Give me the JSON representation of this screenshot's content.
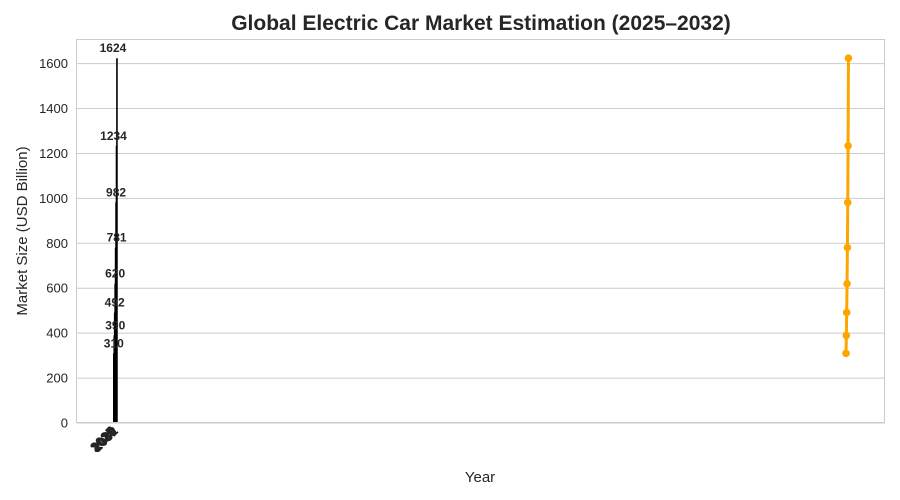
{
  "chart_data": {
    "type": "bar",
    "title": "Global Electric Car Market Estimation (2025–2032)",
    "xlabel": "Year",
    "ylabel": "Market Size (USD Billion)",
    "categories": [
      "2025",
      "2026",
      "2027",
      "2028",
      "2029",
      "2030",
      "2031",
      "2032"
    ],
    "values": [
      310,
      390,
      492,
      620,
      781,
      982,
      1234,
      1624
    ],
    "data_labels": [
      "310",
      "390",
      "492",
      "620",
      "781",
      "982",
      "1234",
      "1624"
    ],
    "yticks": [
      0,
      200,
      400,
      600,
      800,
      1000,
      1200,
      1400,
      1600
    ],
    "ylim": [
      0,
      1705
    ],
    "grid": true,
    "bar_color": "#000000",
    "line_overlay": {
      "values": [
        310,
        390,
        492,
        620,
        781,
        982,
        1234,
        1624
      ],
      "color": "#ffa500"
    }
  }
}
